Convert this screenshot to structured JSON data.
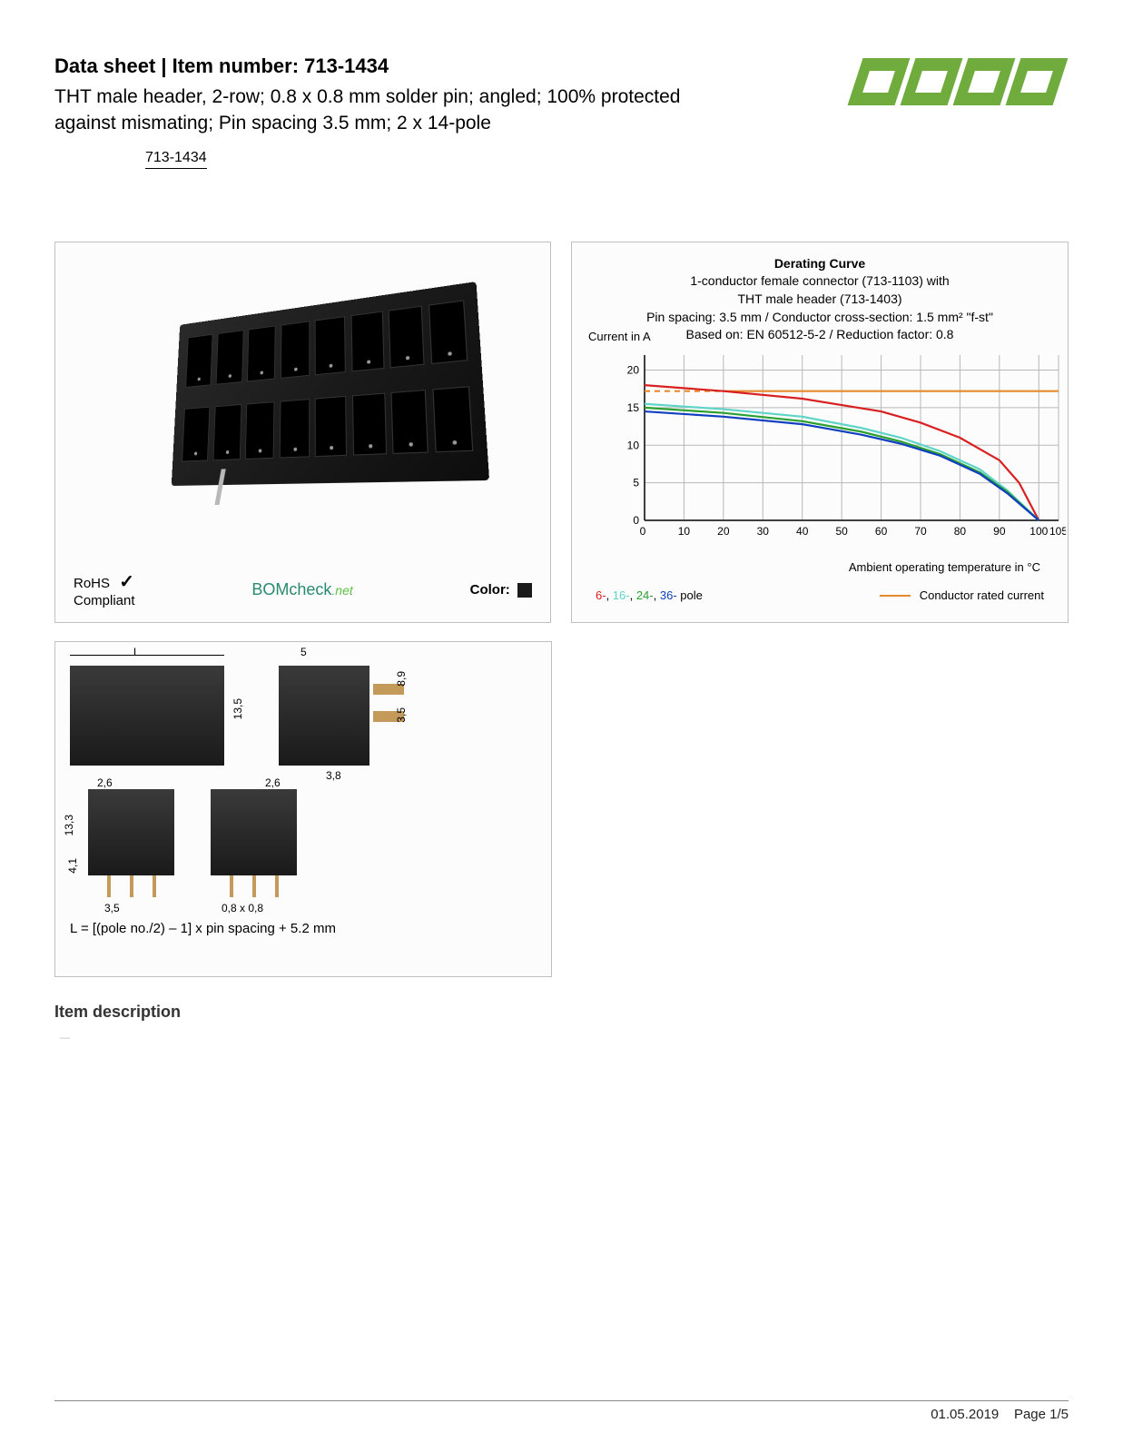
{
  "header": {
    "title_prefix": "Data sheet",
    "title_sep": " | ",
    "title_label": "Item number: ",
    "item_number": "713-1434",
    "description": "THT male header, 2-row; 0.8 x 0.8 mm solder pin; angled; 100% protected against mismating; Pin spacing 3.5 mm; 2 x 14-pole",
    "item_tag": "713-1434",
    "logo_text": "WAGO",
    "logo_color": "#6fac3d"
  },
  "photo_panel": {
    "rohs_line1": "RoHS",
    "rohs_line2": "Compliant",
    "bomcheck": "BOMcheck",
    "bomcheck_suffix": ".net",
    "color_label": "Color:",
    "color_swatch": "#1a1a1a",
    "connector_cells_per_row": 8
  },
  "chart": {
    "title_bold": "Derating Curve",
    "title_l1": "1-conductor female connector (713-1103) with",
    "title_l2": "THT male header (713-1403)",
    "title_l3": "Pin spacing: 3.5 mm / Conductor cross-section: 1.5 mm² \"f-st\"",
    "title_l4": "Based on: EN 60512-5-2 / Reduction factor: 0.8",
    "y_axis_label": "Current in A",
    "x_axis_label": "Ambient operating temperature in °C",
    "y_ticks": [
      0,
      5,
      10,
      15,
      20
    ],
    "x_ticks": [
      0,
      10,
      20,
      30,
      40,
      50,
      60,
      70,
      80,
      90,
      100,
      105
    ],
    "xlim": [
      0,
      105
    ],
    "ylim": [
      0,
      22
    ],
    "grid_color": "#b8b8b8",
    "background": "#fcfcfc",
    "rated_current": {
      "value": 17.2,
      "color": "#e68a2e",
      "dash_until_x": 20
    },
    "series": [
      {
        "name": "6-pole",
        "color": "#d92020",
        "points": [
          [
            0,
            18.0
          ],
          [
            20,
            17.2
          ],
          [
            40,
            16.2
          ],
          [
            60,
            14.5
          ],
          [
            70,
            13.0
          ],
          [
            80,
            11.0
          ],
          [
            90,
            8.0
          ],
          [
            95,
            5.0
          ],
          [
            100,
            0
          ]
        ]
      },
      {
        "name": "16-pole",
        "color": "#5fd4c8",
        "points": [
          [
            0,
            15.5
          ],
          [
            20,
            14.8
          ],
          [
            40,
            13.8
          ],
          [
            55,
            12.3
          ],
          [
            65,
            11.0
          ],
          [
            75,
            9.2
          ],
          [
            85,
            6.8
          ],
          [
            92,
            4.0
          ],
          [
            100,
            0
          ]
        ]
      },
      {
        "name": "24-pole",
        "color": "#2aa030",
        "points": [
          [
            0,
            15.0
          ],
          [
            20,
            14.3
          ],
          [
            40,
            13.2
          ],
          [
            55,
            11.8
          ],
          [
            65,
            10.5
          ],
          [
            75,
            8.8
          ],
          [
            85,
            6.4
          ],
          [
            92,
            3.8
          ],
          [
            100,
            0
          ]
        ]
      },
      {
        "name": "36-pole",
        "color": "#1040c0",
        "points": [
          [
            0,
            14.5
          ],
          [
            20,
            13.8
          ],
          [
            40,
            12.8
          ],
          [
            55,
            11.4
          ],
          [
            65,
            10.2
          ],
          [
            75,
            8.6
          ],
          [
            85,
            6.2
          ],
          [
            92,
            3.6
          ],
          [
            100,
            0
          ]
        ]
      }
    ],
    "legend_poles": "6-, 16-, 24-, 36- pole",
    "legend_rated": "Conductor rated current"
  },
  "dimensions": {
    "L": "L",
    "d_5": "5",
    "d_13_5": "13,5",
    "d_8_9": "8,9",
    "d_3_5s": "3,5",
    "d_3_8": "3,8",
    "d_2_6": "2,6",
    "d_13_3": "13,3",
    "d_4_1": "4,1",
    "d_3_5": "3,5",
    "d_08x08": "0,8 x 0,8",
    "formula": "L = [(pole no./2) – 1] x pin spacing + 5.2 mm"
  },
  "section_heading": "Item description",
  "footer": {
    "date": "01.05.2019",
    "page_label": "Page 1/5"
  }
}
